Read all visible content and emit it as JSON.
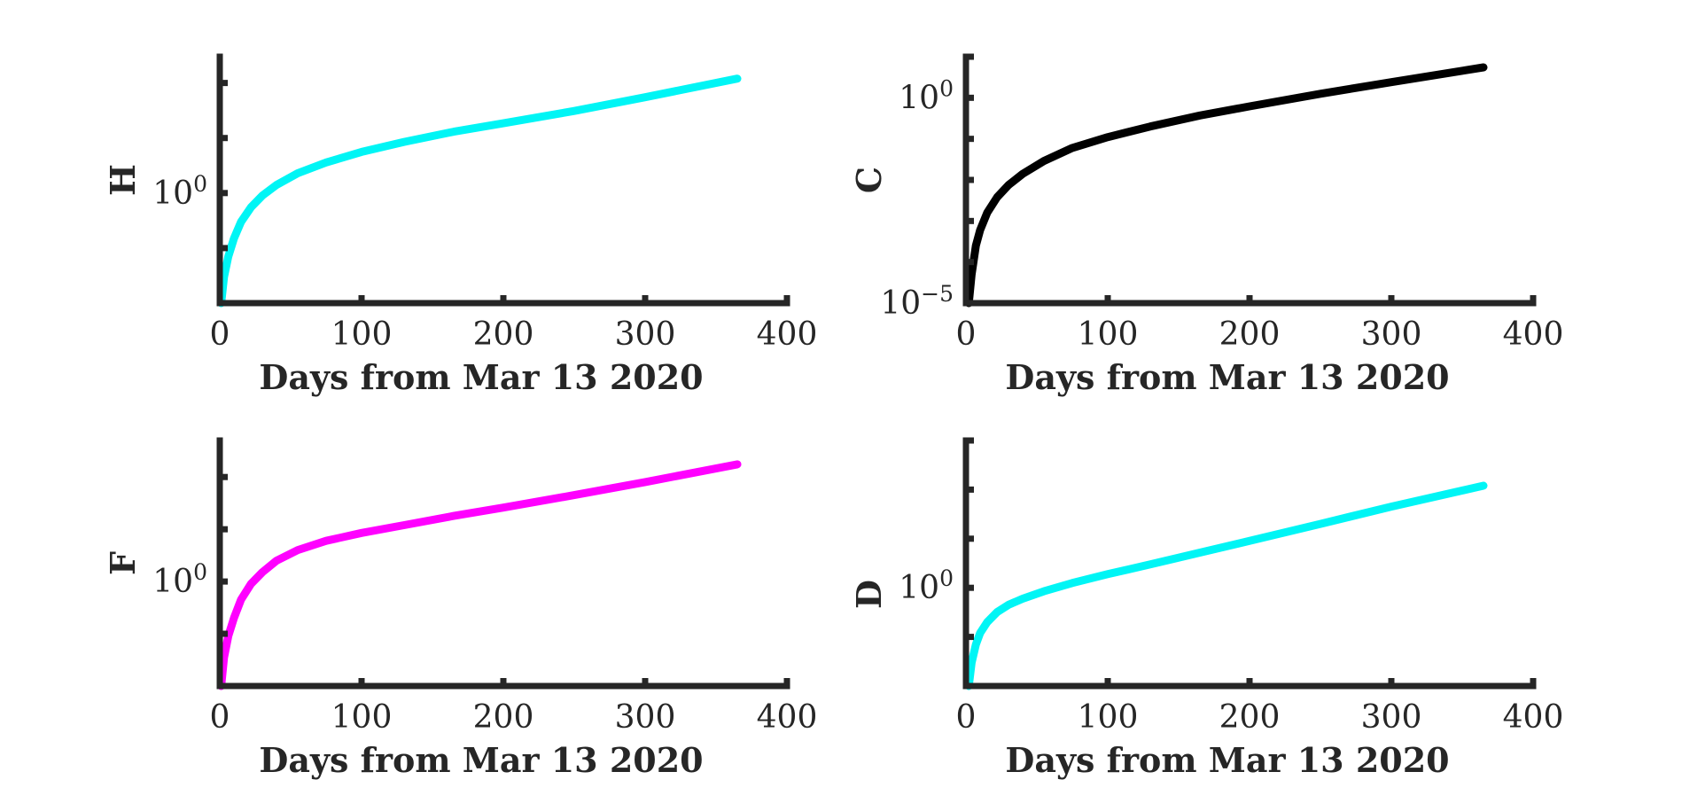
{
  "chart_data": [
    {
      "type": "line",
      "panel": "top-left",
      "xlabel": "Days from Mar 13 2020",
      "ylabel": "H",
      "xlim": [
        0,
        400
      ],
      "xticks": [
        0,
        100,
        200,
        300,
        400
      ],
      "xtick_labels": [
        "0",
        "100",
        "200",
        "300",
        "400"
      ],
      "ytick_labels": [
        {
          "base": "10",
          "exp": "0",
          "value": 1
        }
      ],
      "yscale": "log",
      "ylim": [
        0.01,
        300
      ],
      "grid": false,
      "series": [
        {
          "color": "#00f5f5",
          "x": [
            1,
            3,
            6,
            10,
            15,
            22,
            30,
            40,
            55,
            75,
            100,
            130,
            165,
            200,
            250,
            300,
            365
          ],
          "y": [
            0.01,
            0.03,
            0.07,
            0.15,
            0.3,
            0.55,
            0.9,
            1.4,
            2.3,
            3.6,
            5.6,
            8.5,
            13,
            18.5,
            31,
            55,
            120
          ]
        }
      ]
    },
    {
      "type": "line",
      "panel": "top-right",
      "xlabel": "Days from Mar 13 2020",
      "ylabel": "C",
      "xlim": [
        0,
        400
      ],
      "xticks": [
        0,
        100,
        200,
        300,
        400
      ],
      "xtick_labels": [
        "0",
        "100",
        "200",
        "300",
        "400"
      ],
      "ytick_labels": [
        {
          "base": "10",
          "exp": "0",
          "value": 1
        },
        {
          "base": "10",
          "exp": "−5",
          "value": 1e-05
        }
      ],
      "yscale": "log",
      "ylim": [
        1e-05,
        10
      ],
      "grid": false,
      "series": [
        {
          "color": "#000000",
          "x": [
            2,
            4,
            7,
            10,
            15,
            22,
            30,
            40,
            55,
            75,
            100,
            130,
            165,
            200,
            250,
            300,
            365
          ],
          "y": [
            1e-05,
            5e-05,
            0.00025,
            0.0006,
            0.0016,
            0.0038,
            0.0075,
            0.014,
            0.029,
            0.06,
            0.11,
            0.2,
            0.37,
            0.62,
            1.25,
            2.4,
            5.5
          ]
        }
      ]
    },
    {
      "type": "line",
      "panel": "bottom-left",
      "xlabel": "Days from Mar 13 2020",
      "ylabel": "F",
      "xlim": [
        0,
        400
      ],
      "xticks": [
        0,
        100,
        200,
        300,
        400
      ],
      "xtick_labels": [
        "0",
        "100",
        "200",
        "300",
        "400"
      ],
      "ytick_labels": [
        {
          "base": "10",
          "exp": "0",
          "value": 1
        }
      ],
      "yscale": "log",
      "ylim": [
        0.01,
        500
      ],
      "grid": false,
      "series": [
        {
          "color": "#ff00ff",
          "x": [
            1,
            3,
            6,
            10,
            15,
            22,
            30,
            40,
            55,
            75,
            100,
            130,
            165,
            200,
            250,
            300,
            365
          ],
          "y": [
            0.01,
            0.035,
            0.09,
            0.2,
            0.45,
            0.9,
            1.5,
            2.5,
            4.0,
            6.0,
            8.5,
            12,
            18,
            26,
            45,
            80,
            175
          ]
        }
      ]
    },
    {
      "type": "line",
      "panel": "bottom-right",
      "xlabel": "Days from Mar 13 2020",
      "ylabel": "D",
      "xlim": [
        0,
        400
      ],
      "xticks": [
        0,
        100,
        200,
        300,
        400
      ],
      "xtick_labels": [
        "0",
        "100",
        "200",
        "300",
        "400"
      ],
      "ytick_labels": [
        {
          "base": "10",
          "exp": "0",
          "value": 1
        }
      ],
      "yscale": "log",
      "ylim": [
        0.01,
        1000
      ],
      "grid": false,
      "series": [
        {
          "color": "#00f5f5",
          "x": [
            2,
            4,
            7,
            10,
            15,
            22,
            30,
            40,
            55,
            75,
            100,
            130,
            165,
            200,
            250,
            300,
            365
          ],
          "y": [
            0.01,
            0.03,
            0.07,
            0.12,
            0.2,
            0.32,
            0.45,
            0.6,
            0.85,
            1.25,
            1.9,
            3.0,
            5.2,
            9.0,
            20,
            45,
            120
          ]
        }
      ]
    }
  ]
}
